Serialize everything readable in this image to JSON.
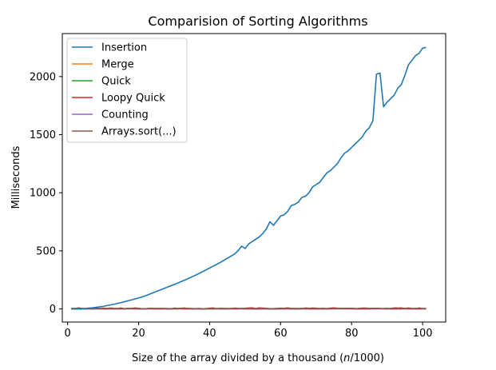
{
  "chart_data": {
    "type": "line",
    "title": "Comparision of Sorting Algorithms",
    "xlabel_parts": [
      "Size of the array divided by a thousand (",
      "n",
      "/1000)"
    ],
    "ylabel": "Milliseconds",
    "xlim": [
      -1.5,
      106.5
    ],
    "ylim": [
      -113,
      2370
    ],
    "xticks": [
      0,
      20,
      40,
      60,
      80,
      100
    ],
    "yticks": [
      0,
      500,
      1000,
      1500,
      2000
    ],
    "grid": false,
    "legend_position": "top-left",
    "x": [
      1,
      2,
      3,
      4,
      5,
      6,
      7,
      8,
      9,
      10,
      11,
      12,
      13,
      14,
      15,
      16,
      17,
      18,
      19,
      20,
      21,
      22,
      23,
      24,
      25,
      26,
      27,
      28,
      29,
      30,
      31,
      32,
      33,
      34,
      35,
      36,
      37,
      38,
      39,
      40,
      41,
      42,
      43,
      44,
      45,
      46,
      47,
      48,
      49,
      50,
      51,
      52,
      53,
      54,
      55,
      56,
      57,
      58,
      59,
      60,
      61,
      62,
      63,
      64,
      65,
      66,
      67,
      68,
      69,
      70,
      71,
      72,
      73,
      74,
      75,
      76,
      77,
      78,
      79,
      80,
      81,
      82,
      83,
      84,
      85,
      86,
      87,
      88,
      89,
      90,
      91,
      92,
      93,
      94,
      95,
      96,
      97,
      98,
      99,
      100,
      101
    ],
    "series": [
      {
        "name": "Insertion",
        "color": "#1f77b4",
        "values": [
          0,
          0,
          1,
          2,
          4,
          7,
          10,
          14,
          18,
          22,
          28,
          34,
          40,
          47,
          54,
          62,
          70,
          78,
          86,
          94,
          104,
          114,
          126,
          138,
          150,
          162,
          174,
          186,
          198,
          210,
          222,
          235,
          248,
          262,
          276,
          290,
          305,
          320,
          336,
          352,
          368,
          384,
          400,
          418,
          436,
          454,
          472,
          500,
          540,
          520,
          560,
          580,
          600,
          620,
          650,
          690,
          750,
          720,
          760,
          800,
          810,
          840,
          890,
          900,
          920,
          960,
          970,
          1000,
          1050,
          1070,
          1090,
          1130,
          1170,
          1190,
          1220,
          1250,
          1300,
          1340,
          1360,
          1390,
          1420,
          1450,
          1480,
          1530,
          1560,
          1620,
          2020,
          2030,
          1740,
          1780,
          1810,
          1840,
          1900,
          1930,
          2010,
          2100,
          2140,
          2180,
          2200,
          2245,
          2250
        ]
      },
      {
        "name": "Merge",
        "color": "#ff7f0e",
        "band": 6
      },
      {
        "name": "Quick",
        "color": "#2ca02c",
        "band": 5
      },
      {
        "name": "Loopy Quick",
        "color": "#d62728",
        "band": 9
      },
      {
        "name": "Counting",
        "color": "#9467bd",
        "band": 1
      },
      {
        "name": "Arrays.sort(...)",
        "color": "#8c564b",
        "band": 4
      }
    ]
  }
}
